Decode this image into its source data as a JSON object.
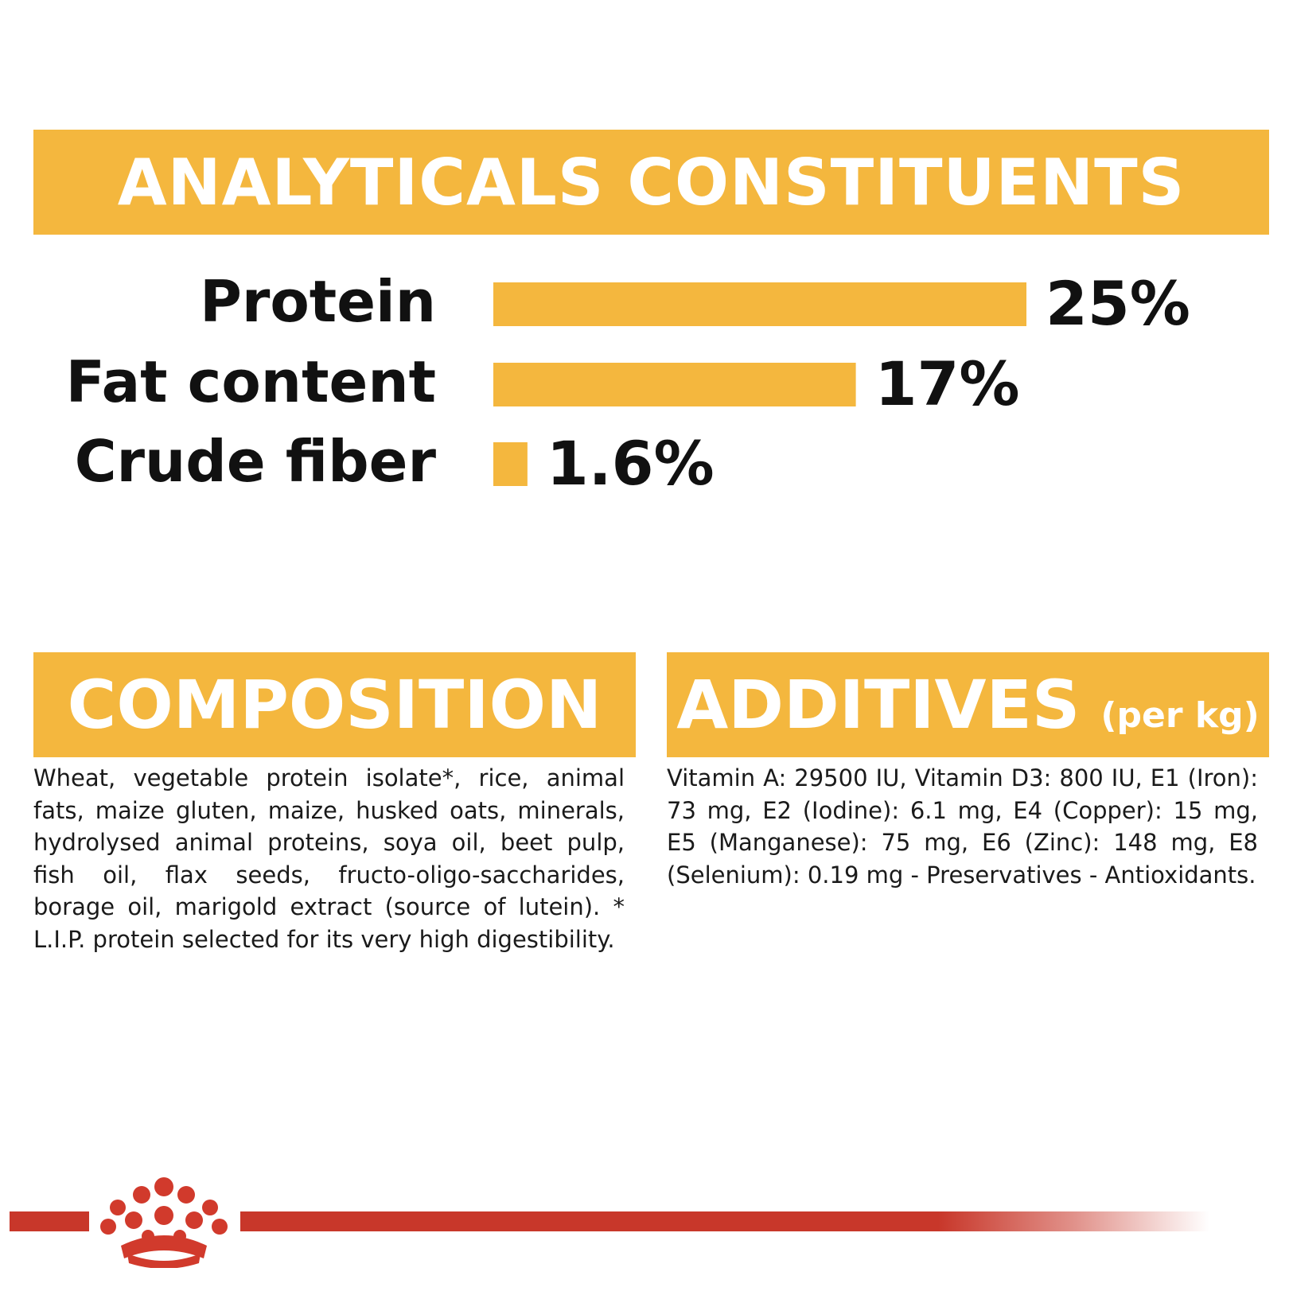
{
  "analytical": {
    "title": "ANALYTICALS CONSTITUENTS"
  },
  "chart_data": {
    "type": "bar",
    "orientation": "horizontal",
    "categories": [
      "Protein",
      "Fat content",
      "Crude fiber"
    ],
    "values": [
      25,
      17,
      1.6
    ],
    "value_labels": [
      "25%",
      "17%",
      "1.6%"
    ],
    "unit": "%",
    "bar_color": "#f4b73e",
    "grid": false,
    "legend": "none"
  },
  "composition": {
    "title": "COMPOSITION",
    "text": "Wheat, vegetable protein isolate*, rice, animal fats, maize gluten, maize, husked oats, minerals, hydrolysed animal proteins, soya oil, beet pulp, fish oil, flax seeds, fructo-oligo-saccharides, borage oil, marigold extract (source of lutein). * L.I.P. protein selected for its very high digestibility."
  },
  "additives": {
    "title": "ADDITIVES",
    "unit": "(per kg)",
    "text": "Vitamin A: 29500 IU, Vitamin D3: 800 IU, E1 (Iron): 73 mg, E2 (Iodine): 6.1 mg, E4 (Copper): 15 mg, E5 (Manganese): 75 mg, E6 (Zinc): 148 mg, E8 (Selenium): 0.19 mg - Preservatives - Antioxidants."
  },
  "colors": {
    "accent": "#f4b73e",
    "brand_red": "#c8372a",
    "text": "#111111"
  },
  "footer": {
    "logo": "crown-icon"
  }
}
